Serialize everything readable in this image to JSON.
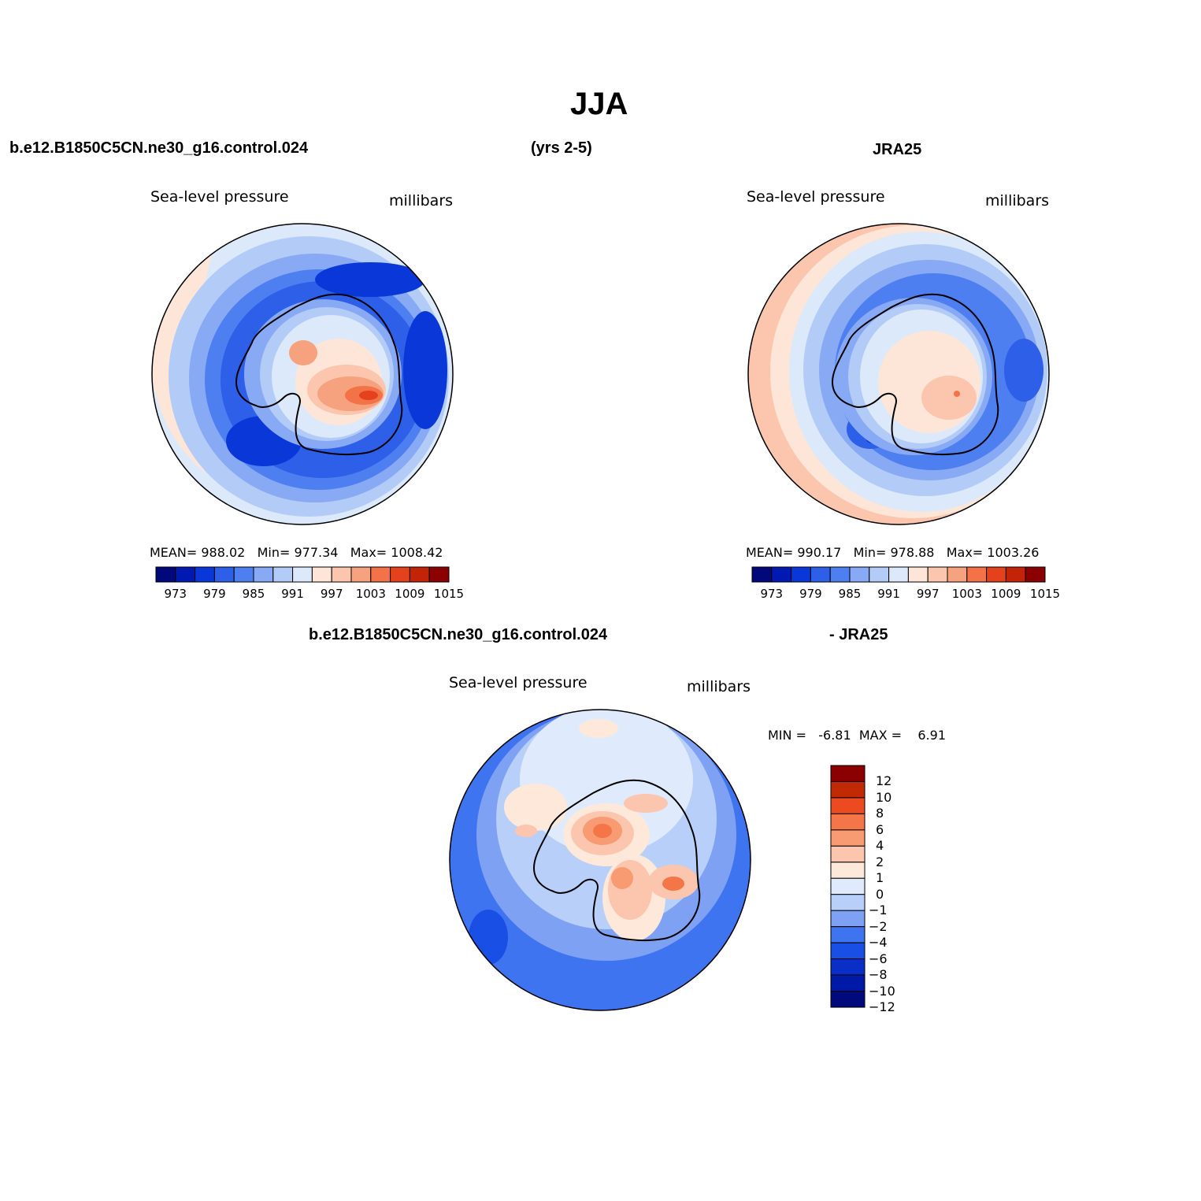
{
  "figure_title": "JJA",
  "header": {
    "case_name": "b.e12.B1850C5CN.ne30_g16.control.024",
    "years": "(yrs 2-5)",
    "obs_name": "JRA25"
  },
  "diff_header": {
    "case_name": "b.e12.B1850C5CN.ne30_g16.control.024",
    "obs_name": "- JRA25"
  },
  "colors": {
    "abs_scale": [
      "#00087a",
      "#0019b3",
      "#0a37d8",
      "#2d5fe8",
      "#4d7ff0",
      "#88a9f3",
      "#b3cbf7",
      "#dce9fb",
      "#fde6d8",
      "#fbc6ad",
      "#f7a27f",
      "#f37248",
      "#e4411d",
      "#c32408",
      "#8b0000"
    ],
    "diff_scale": [
      "#000a7d",
      "#001aa8",
      "#0a2fc9",
      "#1a4fe6",
      "#3f74f0",
      "#7ea1f3",
      "#b7cff9",
      "#dfebfc",
      "#fde8da",
      "#fbc6ad",
      "#f89a72",
      "#f47548",
      "#ec4b22",
      "#c22a05",
      "#8b0000"
    ],
    "coastline": "#000000"
  },
  "panels": [
    {
      "name": "model",
      "variable": "Sea-level pressure",
      "units": "millibars",
      "mean_label": "MEAN=",
      "mean": "988.02",
      "min_label": "Min=",
      "min": "977.34",
      "max_label": "Max=",
      "max": "1008.42",
      "colorbar_ticks": [
        "973",
        "979",
        "985",
        "991",
        "997",
        "1003",
        "1009",
        "1015"
      ]
    },
    {
      "name": "obs",
      "variable": "Sea-level pressure",
      "units": "millibars",
      "mean_label": "MEAN=",
      "mean": "990.17",
      "min_label": "Min=",
      "min": "978.88",
      "max_label": "Max=",
      "max": "1003.26",
      "colorbar_ticks": [
        "973",
        "979",
        "985",
        "991",
        "997",
        "1003",
        "1009",
        "1015"
      ]
    },
    {
      "name": "difference",
      "variable": "Sea-level pressure",
      "units": "millibars",
      "min_label": "MIN =",
      "min": "-6.81",
      "max_label": "MAX =",
      "max": "6.91",
      "colorbar_ticks": [
        "12",
        "10",
        "8",
        "6",
        "4",
        "2",
        "1",
        "0",
        "-1",
        "-2",
        "-4",
        "-6",
        "-8",
        "-10",
        "-12"
      ]
    }
  ]
}
